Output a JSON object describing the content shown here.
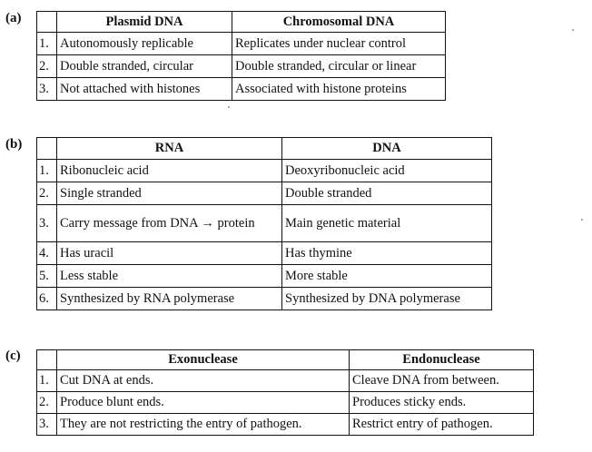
{
  "sections": [
    {
      "label": "(a)",
      "headers": [
        "",
        "Plasmid DNA",
        "Chromosomal DNA"
      ],
      "rows": [
        [
          "1.",
          "Autonomously replicable",
          "Replicates under nuclear control"
        ],
        [
          "2.",
          "Double stranded, circular",
          "Double stranded, circular or linear"
        ],
        [
          "3.",
          "Not attached with histones",
          "Associated with histone proteins"
        ]
      ]
    },
    {
      "label": "(b)",
      "headers": [
        "",
        "RNA",
        "DNA"
      ],
      "rows": [
        [
          "1.",
          "Ribonucleic acid",
          "Deoxyribonucleic acid"
        ],
        [
          "2.",
          "Single stranded",
          "Double stranded"
        ],
        [
          "3.",
          "Carry message from DNA → protein",
          "Main genetic material"
        ],
        [
          "4.",
          "Has uracil",
          "Has thymine"
        ],
        [
          "5.",
          "Less stable",
          "More stable"
        ],
        [
          "6.",
          "Synthesized by RNA polymerase",
          "Synthesized by DNA polymerase"
        ]
      ]
    },
    {
      "label": "(c)",
      "headers": [
        "",
        "Exonuclease",
        "Endonuclease"
      ],
      "rows": [
        [
          "1.",
          "Cut DNA at ends.",
          "Cleave DNA from between."
        ],
        [
          "2.",
          "Produce blunt ends.",
          "Produces sticky ends."
        ],
        [
          "3.",
          "They are not restricting the entry of pathogen.",
          "Restrict entry of pathogen."
        ]
      ]
    }
  ]
}
